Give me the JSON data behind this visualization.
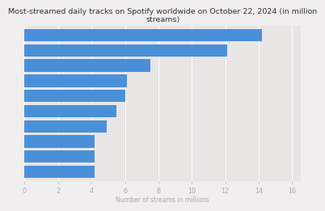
{
  "title": "Most-streamed daily tracks on Spotify worldwide on October 22, 2024 (in million\nstreams)",
  "xlabel": "Number of streams in millions",
  "values": [
    14.2,
    12.1,
    7.5,
    6.1,
    6.0,
    5.5,
    4.9,
    4.2,
    4.2,
    4.2
  ],
  "bar_color": "#4a90d9",
  "xlim": [
    0,
    16.5
  ],
  "xticks": [
    0,
    2,
    4,
    6,
    8,
    10,
    12,
    14,
    16
  ],
  "background_color": "#f0eeee",
  "plot_background": "#e8e5e5",
  "title_fontsize": 6.8,
  "xlabel_fontsize": 5.5,
  "tick_fontsize": 5.8,
  "bar_height": 0.82
}
